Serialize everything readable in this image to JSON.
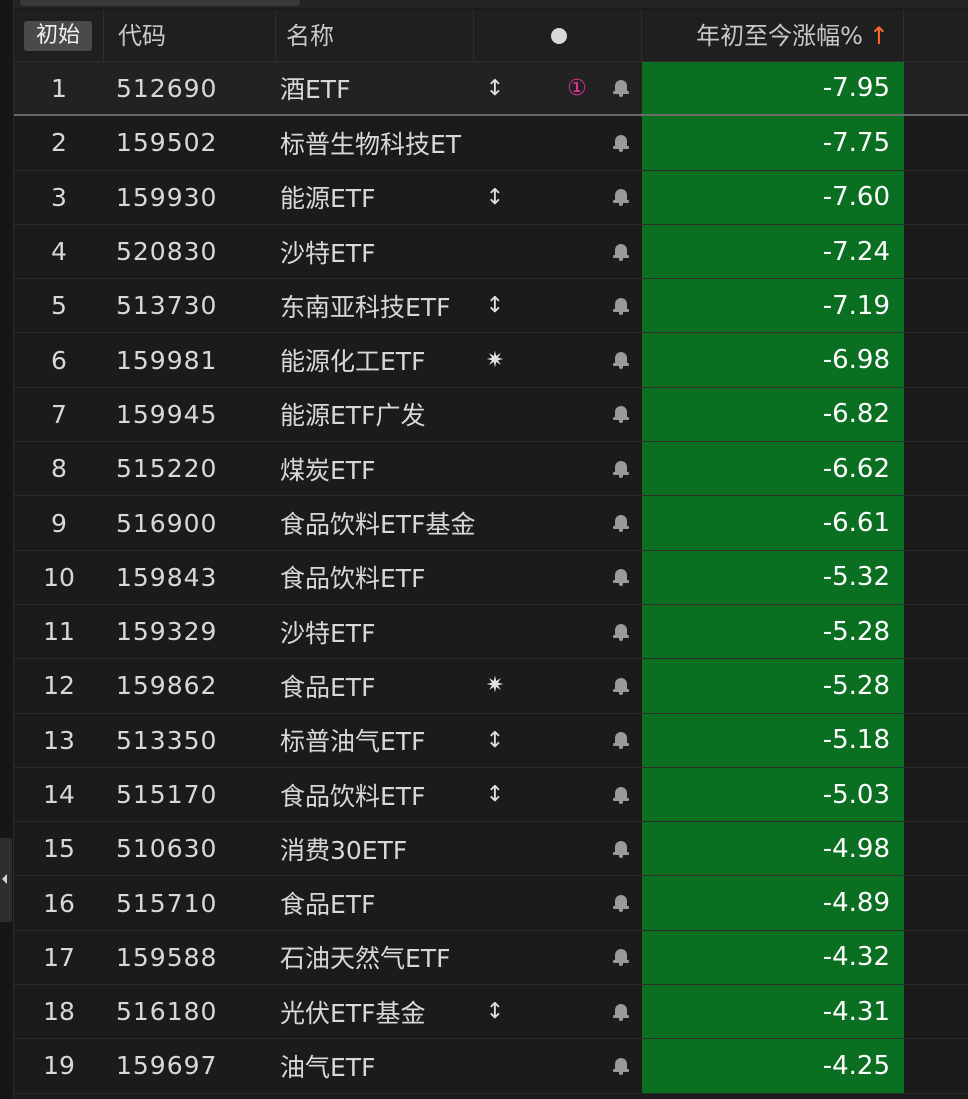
{
  "header": {
    "reset_label": "初始",
    "code_label": "代码",
    "name_label": "名称",
    "pct_label": "年初至今涨幅%",
    "sort_arrow": "↑"
  },
  "colors": {
    "negative_bg": "#0b6f22",
    "sort_arrow": "#ff6a2a",
    "marker_pink": "#e0329a"
  },
  "rows": [
    {
      "idx": "1",
      "code": "512690",
      "name": "酒ETF",
      "flag": "↕",
      "circ": "①",
      "pct": "-7.95"
    },
    {
      "idx": "2",
      "code": "159502",
      "name": "标普生物科技ET",
      "flag": "",
      "circ": "",
      "pct": "-7.75"
    },
    {
      "idx": "3",
      "code": "159930",
      "name": "能源ETF",
      "flag": "↕",
      "circ": "",
      "pct": "-7.60"
    },
    {
      "idx": "4",
      "code": "520830",
      "name": "沙特ETF",
      "flag": "",
      "circ": "",
      "pct": "-7.24"
    },
    {
      "idx": "5",
      "code": "513730",
      "name": "东南亚科技ETF",
      "flag": "↕",
      "circ": "",
      "pct": "-7.19"
    },
    {
      "idx": "6",
      "code": "159981",
      "name": "能源化工ETF",
      "flag": "✷",
      "circ": "",
      "pct": "-6.98"
    },
    {
      "idx": "7",
      "code": "159945",
      "name": "能源ETF广发",
      "flag": "",
      "circ": "",
      "pct": "-6.82"
    },
    {
      "idx": "8",
      "code": "515220",
      "name": "煤炭ETF",
      "flag": "",
      "circ": "",
      "pct": "-6.62"
    },
    {
      "idx": "9",
      "code": "516900",
      "name": "食品饮料ETF基金",
      "flag": "",
      "circ": "",
      "pct": "-6.61"
    },
    {
      "idx": "10",
      "code": "159843",
      "name": "食品饮料ETF",
      "flag": "",
      "circ": "",
      "pct": "-5.32"
    },
    {
      "idx": "11",
      "code": "159329",
      "name": "沙特ETF",
      "flag": "",
      "circ": "",
      "pct": "-5.28"
    },
    {
      "idx": "12",
      "code": "159862",
      "name": "食品ETF",
      "flag": "✷",
      "circ": "",
      "pct": "-5.28"
    },
    {
      "idx": "13",
      "code": "513350",
      "name": "标普油气ETF",
      "flag": "↕",
      "circ": "",
      "pct": "-5.18"
    },
    {
      "idx": "14",
      "code": "515170",
      "name": "食品饮料ETF",
      "flag": "↕",
      "circ": "",
      "pct": "-5.03"
    },
    {
      "idx": "15",
      "code": "510630",
      "name": "消费30ETF",
      "flag": "",
      "circ": "",
      "pct": "-4.98"
    },
    {
      "idx": "16",
      "code": "515710",
      "name": "食品ETF",
      "flag": "",
      "circ": "",
      "pct": "-4.89"
    },
    {
      "idx": "17",
      "code": "159588",
      "name": "石油天然气ETF",
      "flag": "",
      "circ": "",
      "pct": "-4.32"
    },
    {
      "idx": "18",
      "code": "516180",
      "name": "光伏ETF基金",
      "flag": "↕",
      "circ": "",
      "pct": "-4.31"
    },
    {
      "idx": "19",
      "code": "159697",
      "name": "油气ETF",
      "flag": "",
      "circ": "",
      "pct": "-4.25"
    }
  ]
}
